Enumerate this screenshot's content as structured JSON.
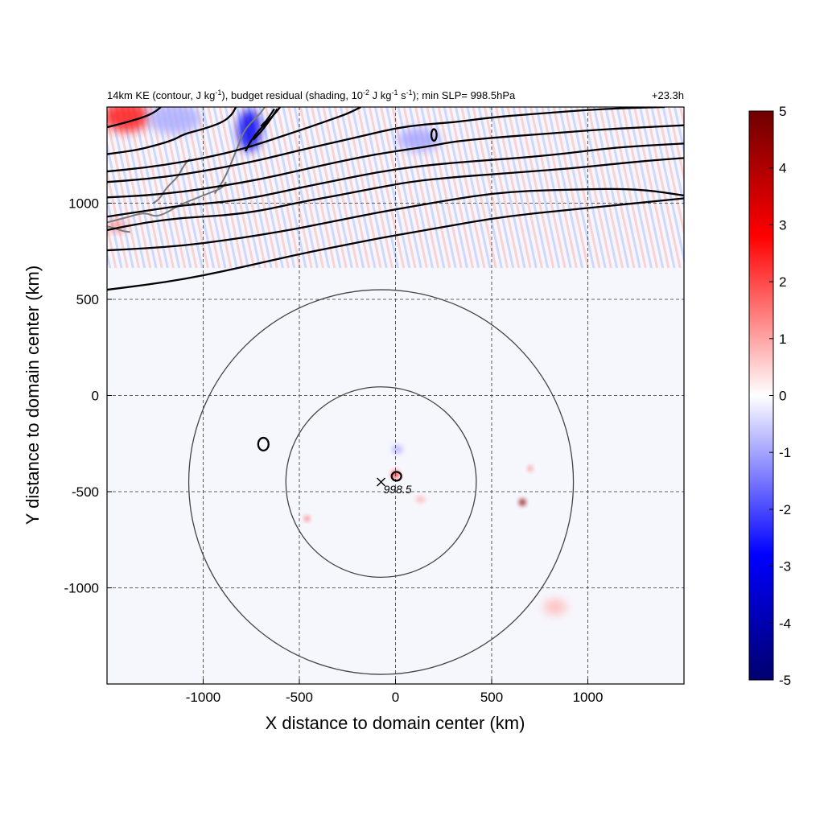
{
  "chart_data": {
    "type": "heatmap",
    "title": "14km KE (contour, J kg-1), budget residual (shading, 10-2 J kg-1 s-1); min SLP= 998.5hPa",
    "title_parts": {
      "p1": "14km KE (contour, J kg",
      "sup1": "-1",
      "p2": "), budget residual (shading, 10",
      "sup2": "-2",
      "p3": " J kg",
      "sup3": "-1",
      "p4": " s",
      "sup4": "-1",
      "p5": "); min SLP= 998.5hPa"
    },
    "time_label": "+23.3h",
    "xlabel": "X distance to domain center (km)",
    "ylabel": "Y distance to domain center (km)",
    "xlim": [
      -1500,
      1500
    ],
    "ylim": [
      -1500,
      1500
    ],
    "xticks": [
      -1000,
      -500,
      0,
      500,
      1000
    ],
    "yticks": [
      -1000,
      -500,
      0,
      500,
      1000
    ],
    "grid": true,
    "colorbar": {
      "min": -5,
      "max": 5,
      "ticks": [
        5,
        4,
        3,
        2,
        1,
        0,
        -1,
        -2,
        -3,
        -4,
        -5
      ],
      "colors": [
        "#00006e",
        "#0000ff",
        "#ffffff",
        "#ff0000",
        "#6e0000"
      ],
      "placement": "right"
    },
    "center_marker": {
      "x": -75,
      "y": -450,
      "label": "998.5"
    },
    "range_rings": [
      {
        "cx": -75,
        "cy": -450,
        "r": 495
      },
      {
        "cx": -75,
        "cy": -450,
        "r": 1000
      }
    ],
    "ke_contours": [
      {
        "points": [
          [
            -1500,
            550
          ],
          [
            -1300,
            575
          ],
          [
            -1100,
            605
          ],
          [
            -900,
            645
          ],
          [
            -700,
            690
          ],
          [
            -500,
            735
          ],
          [
            -300,
            775
          ],
          [
            -100,
            815
          ],
          [
            100,
            850
          ],
          [
            300,
            885
          ],
          [
            500,
            920
          ],
          [
            700,
            945
          ],
          [
            900,
            965
          ],
          [
            1100,
            985
          ],
          [
            1300,
            1005
          ],
          [
            1500,
            1025
          ]
        ]
      },
      {
        "points": [
          [
            -1500,
            755
          ],
          [
            -1300,
            765
          ],
          [
            -1100,
            780
          ],
          [
            -900,
            805
          ],
          [
            -700,
            835
          ],
          [
            -500,
            870
          ],
          [
            -300,
            910
          ],
          [
            -100,
            950
          ],
          [
            100,
            985
          ],
          [
            300,
            1020
          ],
          [
            500,
            1050
          ],
          [
            700,
            1065
          ],
          [
            900,
            1070
          ],
          [
            1100,
            1075
          ],
          [
            1300,
            1070
          ],
          [
            1500,
            1040
          ]
        ]
      },
      {
        "points": [
          [
            -1500,
            860
          ],
          [
            -1300,
            900
          ],
          [
            -1100,
            925
          ],
          [
            -900,
            935
          ],
          [
            -700,
            960
          ],
          [
            -500,
            1005
          ],
          [
            -300,
            1040
          ],
          [
            -100,
            1080
          ],
          [
            100,
            1115
          ],
          [
            300,
            1135
          ],
          [
            500,
            1150
          ],
          [
            700,
            1165
          ],
          [
            900,
            1180
          ],
          [
            1100,
            1200
          ],
          [
            1300,
            1220
          ],
          [
            1500,
            1235
          ]
        ]
      },
      {
        "points": [
          [
            -1500,
            930
          ],
          [
            -1300,
            960
          ],
          [
            -1100,
            990
          ],
          [
            -900,
            1005
          ],
          [
            -700,
            1035
          ],
          [
            -500,
            1080
          ],
          [
            -300,
            1120
          ],
          [
            -100,
            1160
          ],
          [
            100,
            1190
          ],
          [
            300,
            1210
          ],
          [
            500,
            1225
          ],
          [
            700,
            1240
          ],
          [
            900,
            1260
          ],
          [
            1100,
            1285
          ],
          [
            1300,
            1300
          ],
          [
            1500,
            1310
          ]
        ]
      },
      {
        "points": [
          [
            -1500,
            1030
          ],
          [
            -1300,
            1040
          ],
          [
            -1100,
            1060
          ],
          [
            -900,
            1090
          ],
          [
            -700,
            1125
          ],
          [
            -500,
            1170
          ],
          [
            -300,
            1215
          ],
          [
            -100,
            1255
          ],
          [
            100,
            1285
          ],
          [
            200,
            1300
          ],
          [
            300,
            1320
          ],
          [
            500,
            1340
          ],
          [
            700,
            1355
          ],
          [
            900,
            1370
          ],
          [
            1100,
            1385
          ],
          [
            1300,
            1395
          ],
          [
            1500,
            1405
          ]
        ]
      },
      {
        "points": [
          [
            -1500,
            1110
          ],
          [
            -1300,
            1125
          ],
          [
            -1100,
            1150
          ],
          [
            -900,
            1185
          ],
          [
            -700,
            1225
          ],
          [
            -500,
            1275
          ],
          [
            -300,
            1320
          ],
          [
            -150,
            1355
          ],
          [
            0,
            1390
          ],
          [
            150,
            1410
          ],
          [
            300,
            1420
          ],
          [
            450,
            1440
          ],
          [
            600,
            1455
          ],
          [
            800,
            1470
          ],
          [
            1000,
            1485
          ],
          [
            1200,
            1495
          ],
          [
            1400,
            1500
          ]
        ]
      },
      {
        "points": [
          [
            -1500,
            1165
          ],
          [
            -1300,
            1185
          ],
          [
            -1100,
            1215
          ],
          [
            -900,
            1255
          ],
          [
            -750,
            1295
          ],
          [
            -600,
            1345
          ],
          [
            -450,
            1395
          ],
          [
            -350,
            1430
          ],
          [
            -250,
            1465
          ],
          [
            -180,
            1500
          ]
        ]
      },
      {
        "points": [
          [
            -1500,
            1255
          ],
          [
            -1350,
            1275
          ],
          [
            -1250,
            1300
          ],
          [
            -1150,
            1330
          ],
          [
            -1100,
            1360
          ],
          [
            -1000,
            1385
          ],
          [
            -900,
            1420
          ],
          [
            -850,
            1460
          ],
          [
            -830,
            1500
          ]
        ]
      },
      {
        "points": [
          [
            -1500,
            1395
          ],
          [
            -1400,
            1420
          ],
          [
            -1300,
            1450
          ],
          [
            -1250,
            1475
          ],
          [
            -1220,
            1500
          ]
        ]
      },
      {
        "points": [
          [
            -780,
            1270
          ],
          [
            -760,
            1310
          ],
          [
            -730,
            1355
          ],
          [
            -690,
            1400
          ],
          [
            -650,
            1440
          ],
          [
            -620,
            1475
          ],
          [
            -600,
            1500
          ]
        ]
      },
      {
        "points": [
          [
            -740,
            1330
          ],
          [
            -700,
            1370
          ],
          [
            -670,
            1410
          ],
          [
            -640,
            1450
          ],
          [
            -615,
            1490
          ]
        ]
      },
      {
        "points": [
          [
            -700,
            1400
          ],
          [
            -670,
            1430
          ],
          [
            -650,
            1460
          ],
          [
            -630,
            1490
          ]
        ]
      }
    ],
    "ke_small_contours": [
      {
        "cx": -687,
        "cy": -253,
        "rx": 27,
        "ry": 33
      },
      {
        "cx": 5,
        "cy": -420,
        "rx": 25,
        "ry": 23
      },
      {
        "cx": 200,
        "cy": 1355,
        "rx": 14,
        "ry": 30
      }
    ],
    "coastlines": [
      {
        "points": [
          [
            -1500,
            900
          ],
          [
            -1420,
            920
          ],
          [
            -1350,
            940
          ],
          [
            -1300,
            950
          ],
          [
            -1250,
            930
          ],
          [
            -1200,
            945
          ],
          [
            -1150,
            975
          ],
          [
            -1100,
            1000
          ],
          [
            -1050,
            1020
          ],
          [
            -1000,
            1040
          ],
          [
            -950,
            1060
          ],
          [
            -900,
            1080
          ],
          [
            -880,
            1110
          ]
        ]
      },
      {
        "points": [
          [
            -1260,
            1000
          ],
          [
            -1230,
            1020
          ],
          [
            -1210,
            1050
          ],
          [
            -1190,
            1080
          ],
          [
            -1160,
            1110
          ],
          [
            -1130,
            1140
          ],
          [
            -1110,
            1180
          ],
          [
            -1090,
            1210
          ],
          [
            -1070,
            1230
          ]
        ]
      },
      {
        "points": [
          [
            -940,
            1050
          ],
          [
            -900,
            1110
          ],
          [
            -870,
            1170
          ],
          [
            -850,
            1220
          ],
          [
            -830,
            1270
          ],
          [
            -810,
            1320
          ],
          [
            -790,
            1370
          ],
          [
            -760,
            1410
          ],
          [
            -730,
            1440
          ],
          [
            -700,
            1470
          ],
          [
            -680,
            1500
          ]
        ]
      },
      {
        "points": [
          [
            -1500,
            880
          ],
          [
            -1460,
            870
          ],
          [
            -1420,
            855
          ],
          [
            -1380,
            850
          ]
        ]
      }
    ],
    "positive_spots": [
      {
        "x": 660,
        "y": -555,
        "v": 4.5,
        "rx": 18,
        "ry": 18
      },
      {
        "x": 700,
        "y": -380,
        "v": 1.6,
        "rx": 12,
        "ry": 14
      },
      {
        "x": -460,
        "y": -640,
        "v": 1.8,
        "rx": 14,
        "ry": 14
      },
      {
        "x": 0,
        "y": -410,
        "v": 2.2,
        "rx": 22,
        "ry": 20
      },
      {
        "x": 130,
        "y": -540,
        "v": 0.8,
        "rx": 24,
        "ry": 18
      },
      {
        "x": -1400,
        "y": 1450,
        "v": 2.5,
        "rx": 120,
        "ry": 80
      },
      {
        "x": -1450,
        "y": 880,
        "v": 1.6,
        "rx": 50,
        "ry": 25
      },
      {
        "x": 830,
        "y": -1100,
        "v": 0.8,
        "rx": 60,
        "ry": 40
      }
    ],
    "negative_spots": [
      {
        "x": -760,
        "y": 1380,
        "v": -3.0,
        "rx": 60,
        "ry": 110
      },
      {
        "x": -1150,
        "y": 1440,
        "v": -0.9,
        "rx": 140,
        "ry": 80
      },
      {
        "x": 120,
        "y": 1330,
        "v": -1.0,
        "rx": 110,
        "ry": 60
      },
      {
        "x": 10,
        "y": -280,
        "v": -0.7,
        "rx": 30,
        "ry": 25
      }
    ]
  }
}
